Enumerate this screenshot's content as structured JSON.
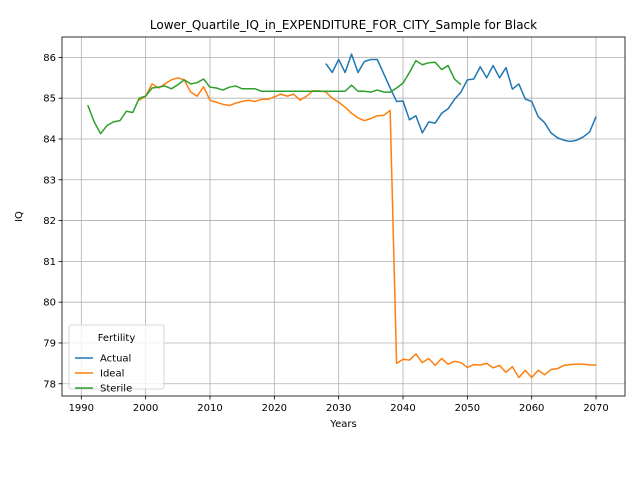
{
  "chart_data": {
    "type": "line",
    "title": "Lower_Quartile_IQ_in_EXPENDITURE_FOR_CITY_Sample for Black",
    "xlabel": "Years",
    "ylabel": "IQ",
    "xlim": [
      1987,
      2074.5
    ],
    "ylim": [
      77.7,
      86.5
    ],
    "xticks": [
      1990,
      2000,
      2010,
      2020,
      2030,
      2040,
      2050,
      2060,
      2070
    ],
    "yticks": [
      78,
      79,
      80,
      81,
      82,
      83,
      84,
      85,
      86
    ],
    "grid": true,
    "legend": {
      "title": "Fertility",
      "position": "lower-left"
    },
    "series": [
      {
        "name": "Actual",
        "color": "#1f77b4",
        "x": [
          2028,
          2029,
          2030,
          2031,
          2032,
          2033,
          2034,
          2035,
          2036,
          2037,
          2038,
          2039,
          2040,
          2041,
          2042,
          2043,
          2044,
          2045,
          2046,
          2047,
          2048,
          2049,
          2050,
          2051,
          2052,
          2053,
          2054,
          2055,
          2056,
          2057,
          2058,
          2059,
          2060,
          2061,
          2062,
          2063,
          2064,
          2065,
          2066,
          2067,
          2068,
          2069,
          2070
        ],
        "y": [
          85.85,
          85.63,
          85.95,
          85.63,
          86.08,
          85.63,
          85.9,
          85.95,
          85.95,
          85.6,
          85.25,
          84.92,
          84.93,
          84.47,
          84.57,
          84.15,
          84.42,
          84.39,
          84.63,
          84.74,
          84.97,
          85.15,
          85.45,
          85.47,
          85.77,
          85.5,
          85.8,
          85.5,
          85.75,
          85.22,
          85.35,
          84.98,
          84.92,
          84.55,
          84.4,
          84.15,
          84.03,
          83.97,
          83.94,
          83.97,
          84.05,
          84.17,
          84.55
        ]
      },
      {
        "name": "Ideal",
        "color": "#ff7f0e",
        "x": [
          1999,
          2000,
          2001,
          2002,
          2003,
          2004,
          2005,
          2006,
          2007,
          2008,
          2009,
          2010,
          2011,
          2012,
          2013,
          2014,
          2015,
          2016,
          2017,
          2018,
          2019,
          2020,
          2021,
          2022,
          2023,
          2024,
          2025,
          2026,
          2027,
          2028,
          2029,
          2030,
          2031,
          2032,
          2033,
          2034,
          2035,
          2036,
          2037,
          2038,
          2039,
          2040,
          2041,
          2042,
          2043,
          2044,
          2045,
          2046,
          2047,
          2048,
          2049,
          2050,
          2051,
          2052,
          2053,
          2054,
          2055,
          2056,
          2057,
          2058,
          2059,
          2060,
          2061,
          2062,
          2063,
          2064,
          2065,
          2066,
          2067,
          2068,
          2069,
          2070
        ],
        "y": [
          84.95,
          85.05,
          85.35,
          85.25,
          85.35,
          85.45,
          85.5,
          85.45,
          85.15,
          85.05,
          85.28,
          84.95,
          84.9,
          84.85,
          84.82,
          84.88,
          84.92,
          84.95,
          84.92,
          84.97,
          84.97,
          85.03,
          85.1,
          85.05,
          85.1,
          84.95,
          85.05,
          85.18,
          85.18,
          85.15,
          85.0,
          84.9,
          84.78,
          84.63,
          84.52,
          84.45,
          84.5,
          84.57,
          84.58,
          84.7,
          78.5,
          78.6,
          78.58,
          78.73,
          78.52,
          78.62,
          78.45,
          78.62,
          78.48,
          78.55,
          78.52,
          78.4,
          78.47,
          78.46,
          78.5,
          78.39,
          78.45,
          78.28,
          78.42,
          78.15,
          78.33,
          78.15,
          78.33,
          78.22,
          78.35,
          78.37,
          78.45,
          78.47,
          78.48,
          78.48,
          78.46,
          78.46
        ]
      },
      {
        "name": "Sterile",
        "color": "#2ca02c",
        "x": [
          1991,
          1992,
          1993,
          1994,
          1995,
          1996,
          1997,
          1998,
          1999,
          2000,
          2001,
          2002,
          2003,
          2004,
          2005,
          2006,
          2007,
          2008,
          2009,
          2010,
          2011,
          2012,
          2013,
          2014,
          2015,
          2016,
          2017,
          2018,
          2019,
          2020,
          2021,
          2022,
          2023,
          2024,
          2025,
          2026,
          2027,
          2028,
          2029,
          2030,
          2031,
          2032,
          2033,
          2034,
          2035,
          2036,
          2037,
          2038,
          2039,
          2040,
          2041,
          2042,
          2043,
          2044,
          2045,
          2046,
          2047,
          2048,
          2049
        ],
        "y": [
          84.83,
          84.42,
          84.13,
          84.33,
          84.42,
          84.45,
          84.68,
          84.65,
          85.0,
          85.05,
          85.25,
          85.27,
          85.3,
          85.23,
          85.33,
          85.45,
          85.35,
          85.38,
          85.47,
          85.27,
          85.25,
          85.2,
          85.27,
          85.3,
          85.23,
          85.23,
          85.23,
          85.17,
          85.17,
          85.17,
          85.17,
          85.17,
          85.17,
          85.17,
          85.17,
          85.17,
          85.17,
          85.17,
          85.17,
          85.17,
          85.17,
          85.32,
          85.17,
          85.17,
          85.15,
          85.2,
          85.15,
          85.15,
          85.25,
          85.37,
          85.63,
          85.92,
          85.82,
          85.87,
          85.88,
          85.7,
          85.8,
          85.47,
          85.33
        ]
      }
    ]
  }
}
